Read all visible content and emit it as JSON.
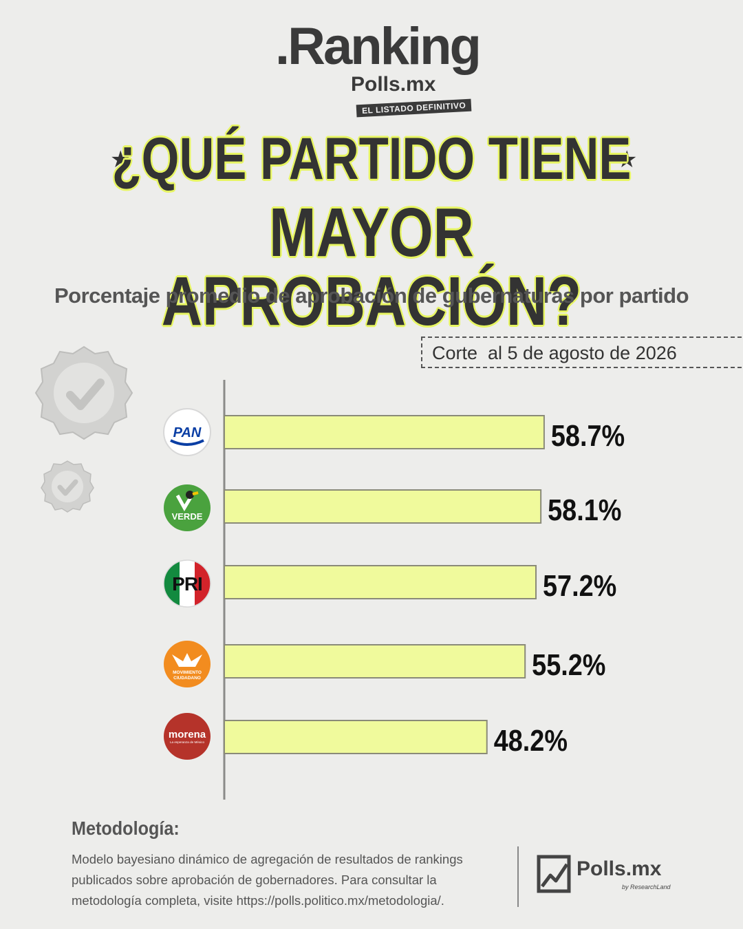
{
  "logo": {
    "ranking": ".Ranking",
    "sub": "Polls.mx",
    "tag": "EL LISTADO DEFINITIVO"
  },
  "title": {
    "line1": "¿QUÉ PARTIDO TIENE",
    "line2": "MAYOR APROBACIÓN?"
  },
  "subtitle": "Porcentaje promedio de aprobación de gubernaturas por partido",
  "date_note": "Corte  al 5 de agosto de 2026",
  "colors": {
    "bar": "#f0fa9c",
    "bar_stroke": "#8a8a78",
    "accent": "#e7f562",
    "pan": "#0a3ea4",
    "verde": "#4aa23e",
    "pri_green": "#138a3f",
    "pri_red": "#d2232a",
    "mc": "#f28c1f",
    "morena": "#b5332a"
  },
  "chart_data": {
    "type": "bar",
    "orientation": "horizontal",
    "categories": [
      "PAN",
      "VERDE",
      "PRI",
      "MOVIMIENTO CIUDADANO",
      "morena"
    ],
    "values": [
      58.7,
      58.1,
      57.2,
      55.2,
      48.2
    ],
    "value_labels": [
      "58.7%",
      "58.1%",
      "57.2%",
      "55.2%",
      "48.2%"
    ],
    "unit": "%",
    "title": "¿QUÉ PARTIDO TIENE MAYOR APROBACIÓN?",
    "subtitle": "Porcentaje promedio de aprobación de gubernaturas por partido",
    "xlim": [
      0,
      100
    ],
    "grid": false,
    "legend": "none"
  },
  "party_logos": [
    {
      "label": "PAN",
      "icon": "pan-logo"
    },
    {
      "label": "VERDE",
      "icon": "verde-logo"
    },
    {
      "label": "PRI",
      "icon": "pri-logo"
    },
    {
      "label": "MOVIMIENTO CIUDADANO",
      "icon": "mc-logo"
    },
    {
      "label": "morena",
      "sub": "La esperanza de México",
      "icon": "morena-logo"
    }
  ],
  "methodology": {
    "title": "Metodología:",
    "text": "Modelo bayesiano dinámico de agregación de resultados de rankings publicados sobre aprobación de gobernadores. Para consultar la metodología completa, visite https://polls.politico.mx/metodologia/."
  },
  "brand": {
    "name": "Polls.mx",
    "sub": "by ResearchLand",
    "icon": "chart-line-icon"
  },
  "badges": {
    "icon": "check-badge-icon"
  }
}
